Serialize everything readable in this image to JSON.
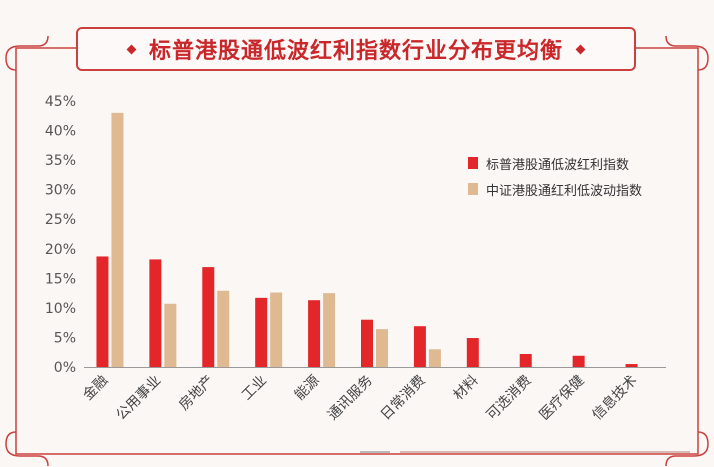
{
  "title": "标普港股通低波红利指数行业分布更均衡",
  "colors": {
    "series1": "#e3262a",
    "series2": "#dfb992",
    "frame": "#c9403f",
    "axis_text": "#555555"
  },
  "chart_data": {
    "type": "bar",
    "categories": [
      "金融",
      "公用事业",
      "房地产",
      "工业",
      "能源",
      "通讯服务",
      "日常消费",
      "材料",
      "可选消费",
      "医疗保健",
      "信息技术"
    ],
    "series": [
      {
        "name": "标普港股通低波红利指数",
        "values": [
          18.7,
          18.2,
          16.9,
          11.7,
          11.3,
          8.0,
          6.9,
          4.9,
          2.2,
          1.9,
          0.5
        ]
      },
      {
        "name": "中证港股通红利低波动指数",
        "values": [
          43.0,
          10.7,
          12.9,
          12.6,
          12.5,
          6.4,
          3.0,
          0,
          0,
          0,
          0
        ]
      }
    ],
    "yticks": [
      "0%",
      "5%",
      "10%",
      "15%",
      "20%",
      "25%",
      "30%",
      "35%",
      "40%",
      "45%"
    ],
    "ylim": [
      0,
      45
    ],
    "legend_position": "top-right",
    "grid": false
  }
}
